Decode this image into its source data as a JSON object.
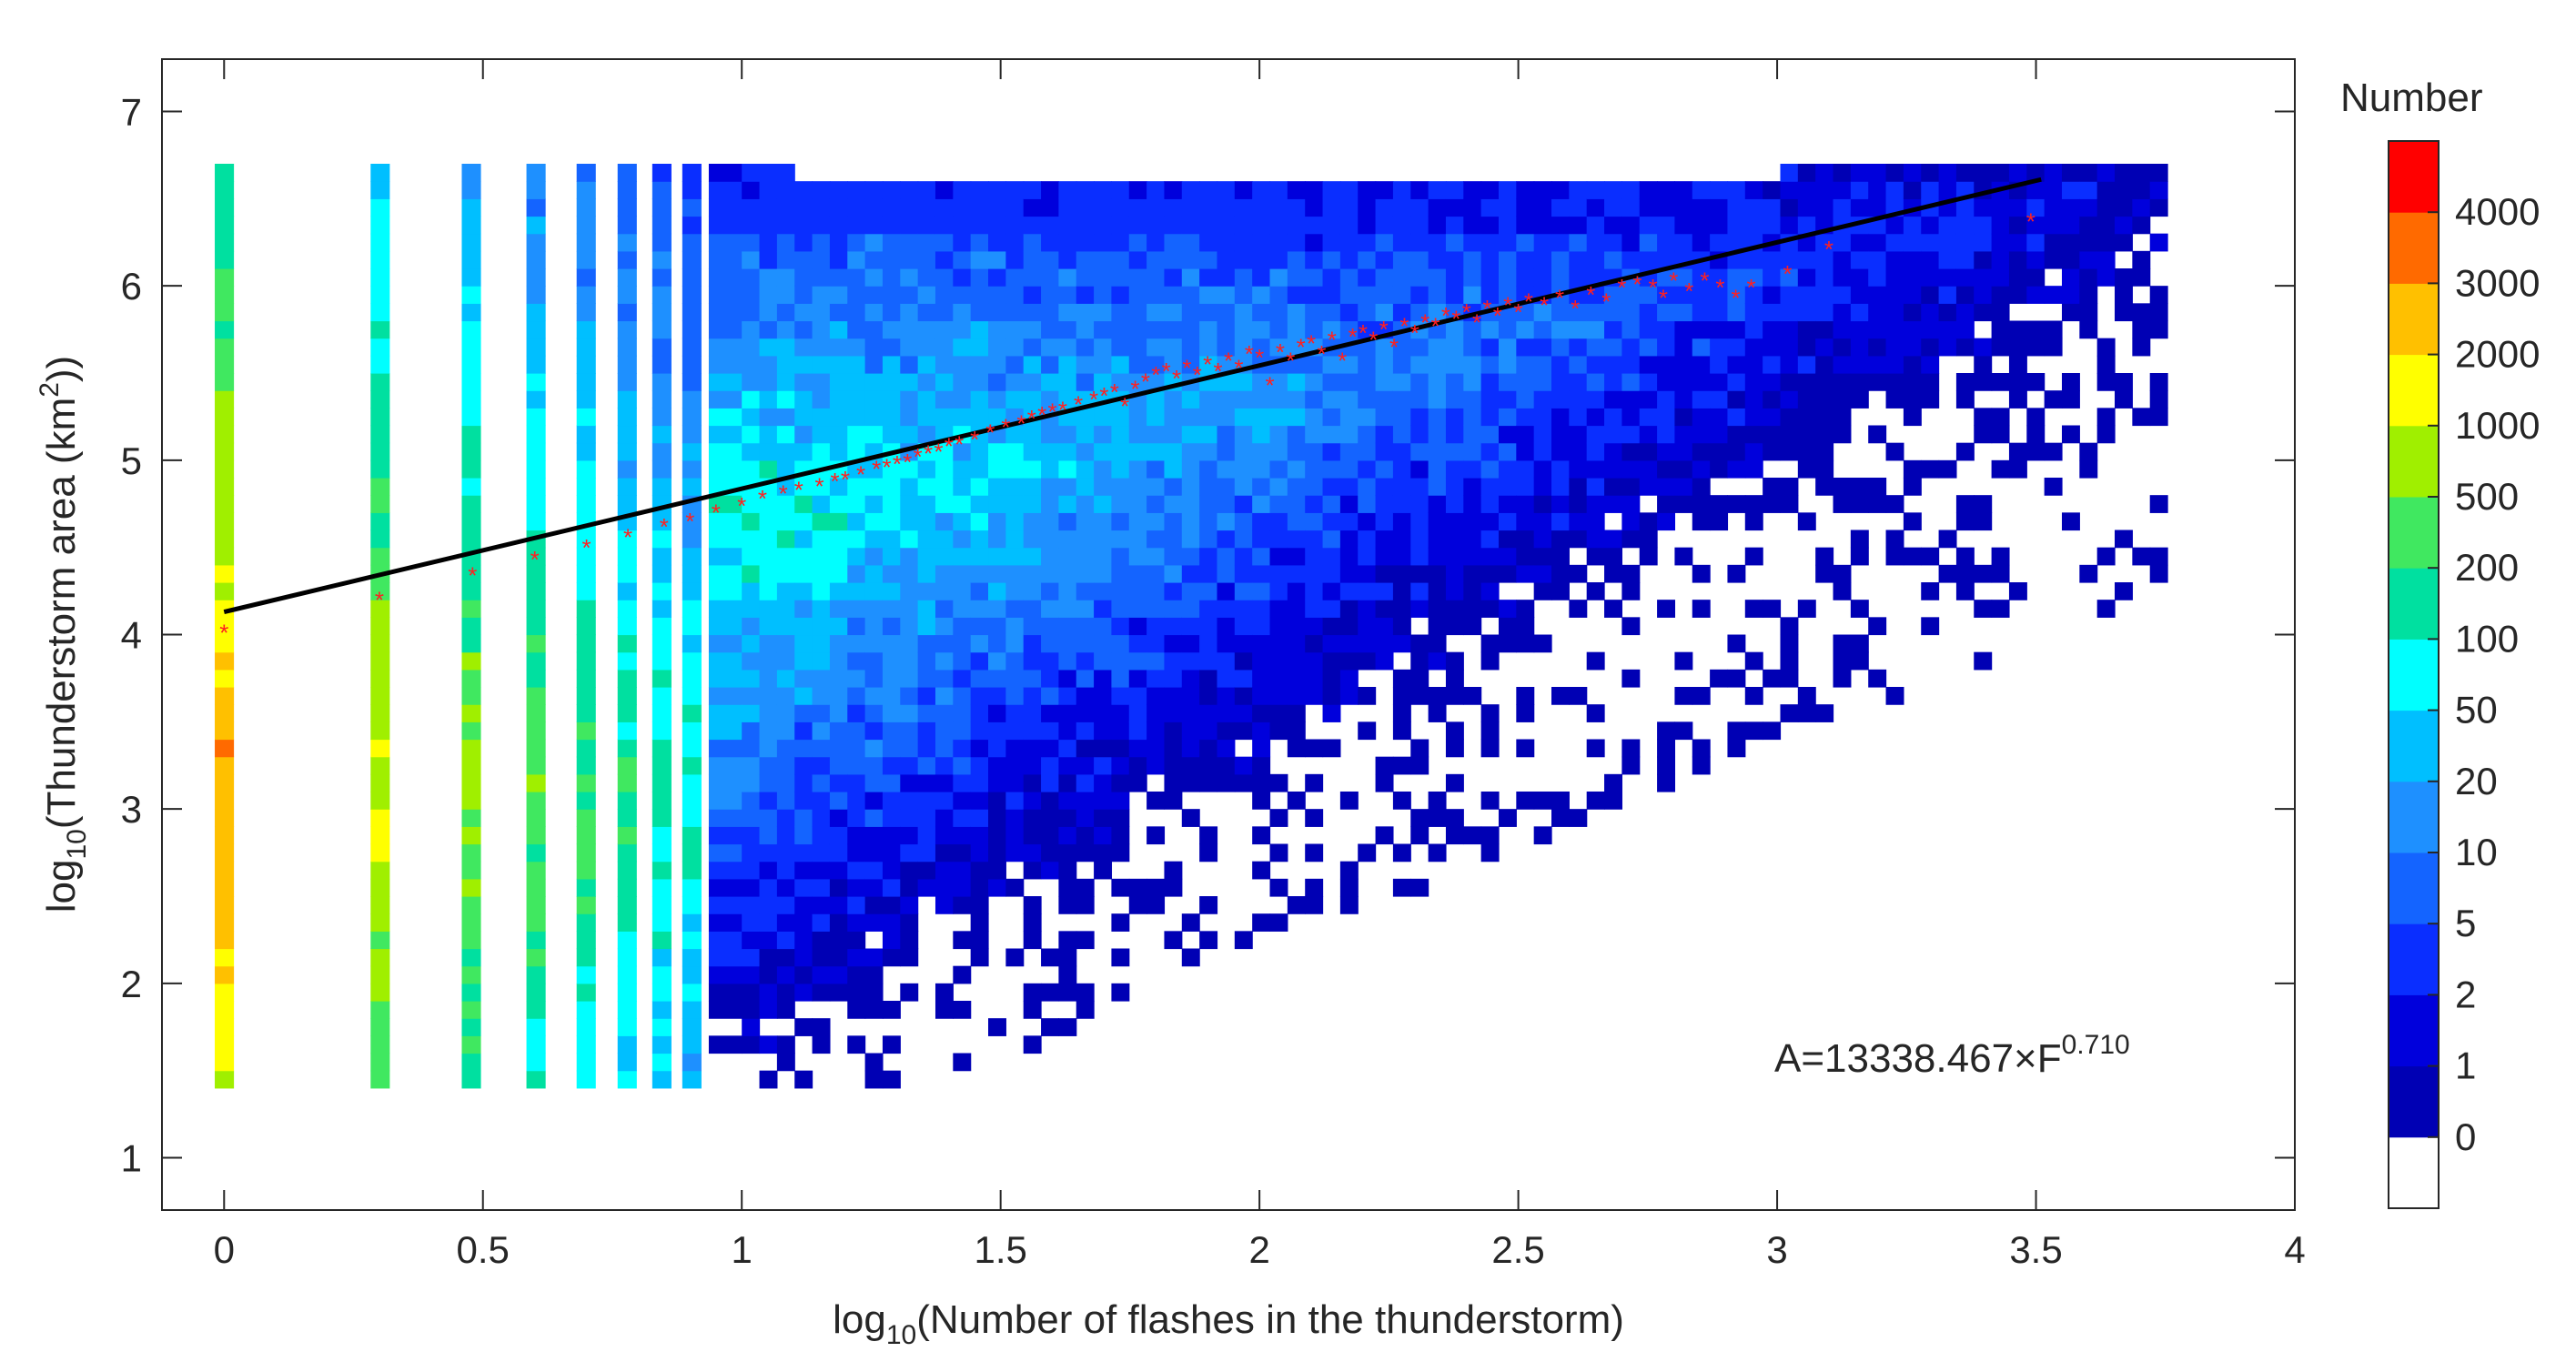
{
  "chart_data": {
    "type": "heatmap",
    "title": "",
    "xlabel": {
      "prefix": "log",
      "sub": "10",
      "rest": "(Number of flashes in the thunderstorm)"
    },
    "ylabel": {
      "prefix": "log",
      "sub": "10",
      "mid": "(Thunderstorm area (km",
      "sup": "2",
      "end": "))"
    },
    "xlim": [
      -0.12,
      4
    ],
    "ylim": [
      0.7,
      7.3
    ],
    "x_ticks": [
      "0",
      "0.5",
      "1",
      "1.5",
      "2",
      "2.5",
      "3",
      "3.5",
      "4"
    ],
    "y_ticks": [
      "1",
      "2",
      "3",
      "4",
      "5",
      "6",
      "7"
    ],
    "colorbar": {
      "title": "Number",
      "tick_labels": [
        "0",
        "1",
        "2",
        "5",
        "10",
        "20",
        "50",
        "100",
        "200",
        "500",
        "1000",
        "2000",
        "3000",
        "4000"
      ],
      "colors": [
        "#ffffff",
        "#0000b4",
        "#0000dc",
        "#0a2eff",
        "#1464ff",
        "#1e90ff",
        "#00bfff",
        "#00ffff",
        "#00e0a0",
        "#40e860",
        "#a0ef00",
        "#ffff00",
        "#ffc000",
        "#ff6a00",
        "#ff0000"
      ]
    },
    "fit_line": {
      "x": [
        0,
        3.51
      ],
      "y": [
        4.13,
        6.61
      ],
      "color": "#000000"
    },
    "annotation": {
      "base": "A=13338.467×F",
      "sup": "0.710"
    },
    "mean_points_color": "#ff2020",
    "mean_points": [
      [
        0.0,
        4.02
      ],
      [
        0.3,
        4.21
      ],
      [
        0.48,
        4.35
      ],
      [
        0.6,
        4.44
      ],
      [
        0.7,
        4.51
      ],
      [
        0.78,
        4.57
      ],
      [
        0.85,
        4.63
      ],
      [
        0.9,
        4.66
      ],
      [
        0.95,
        4.71
      ],
      [
        1.0,
        4.75
      ],
      [
        1.04,
        4.79
      ],
      [
        1.08,
        4.82
      ],
      [
        1.11,
        4.84
      ],
      [
        1.15,
        4.86
      ],
      [
        1.18,
        4.89
      ],
      [
        1.2,
        4.9
      ],
      [
        1.23,
        4.93
      ],
      [
        1.26,
        4.96
      ],
      [
        1.28,
        4.97
      ],
      [
        1.3,
        4.99
      ],
      [
        1.32,
        5.0
      ],
      [
        1.34,
        5.03
      ],
      [
        1.36,
        5.05
      ],
      [
        1.38,
        5.06
      ],
      [
        1.4,
        5.09
      ],
      [
        1.42,
        5.1
      ],
      [
        1.45,
        5.13
      ],
      [
        1.48,
        5.17
      ],
      [
        1.51,
        5.2
      ],
      [
        1.54,
        5.22
      ],
      [
        1.56,
        5.25
      ],
      [
        1.58,
        5.27
      ],
      [
        1.6,
        5.29
      ],
      [
        1.62,
        5.3
      ],
      [
        1.65,
        5.33
      ],
      [
        1.68,
        5.36
      ],
      [
        1.7,
        5.38
      ],
      [
        1.72,
        5.4
      ],
      [
        1.74,
        5.32
      ],
      [
        1.76,
        5.42
      ],
      [
        1.78,
        5.46
      ],
      [
        1.8,
        5.5
      ],
      [
        1.82,
        5.52
      ],
      [
        1.84,
        5.48
      ],
      [
        1.86,
        5.54
      ],
      [
        1.88,
        5.5
      ],
      [
        1.9,
        5.56
      ],
      [
        1.92,
        5.52
      ],
      [
        1.94,
        5.58
      ],
      [
        1.96,
        5.54
      ],
      [
        1.98,
        5.62
      ],
      [
        2.0,
        5.6
      ],
      [
        2.02,
        5.44
      ],
      [
        2.04,
        5.63
      ],
      [
        2.06,
        5.58
      ],
      [
        2.08,
        5.66
      ],
      [
        2.1,
        5.68
      ],
      [
        2.12,
        5.62
      ],
      [
        2.14,
        5.7
      ],
      [
        2.16,
        5.58
      ],
      [
        2.18,
        5.72
      ],
      [
        2.2,
        5.74
      ],
      [
        2.22,
        5.7
      ],
      [
        2.24,
        5.76
      ],
      [
        2.26,
        5.66
      ],
      [
        2.28,
        5.78
      ],
      [
        2.3,
        5.74
      ],
      [
        2.32,
        5.8
      ],
      [
        2.34,
        5.78
      ],
      [
        2.36,
        5.84
      ],
      [
        2.38,
        5.82
      ],
      [
        2.4,
        5.86
      ],
      [
        2.42,
        5.8
      ],
      [
        2.44,
        5.88
      ],
      [
        2.46,
        5.84
      ],
      [
        2.48,
        5.9
      ],
      [
        2.5,
        5.86
      ],
      [
        2.52,
        5.92
      ],
      [
        2.55,
        5.9
      ],
      [
        2.58,
        5.94
      ],
      [
        2.61,
        5.88
      ],
      [
        2.64,
        5.96
      ],
      [
        2.67,
        5.92
      ],
      [
        2.7,
        6.0
      ],
      [
        2.73,
        6.02
      ],
      [
        2.76,
        6.0
      ],
      [
        2.78,
        5.94
      ],
      [
        2.8,
        6.04
      ],
      [
        2.83,
        5.98
      ],
      [
        2.86,
        6.04
      ],
      [
        2.89,
        6.0
      ],
      [
        2.92,
        5.94
      ],
      [
        2.95,
        6.0
      ],
      [
        3.02,
        6.08
      ],
      [
        3.1,
        6.22
      ],
      [
        3.49,
        6.38
      ]
    ]
  }
}
